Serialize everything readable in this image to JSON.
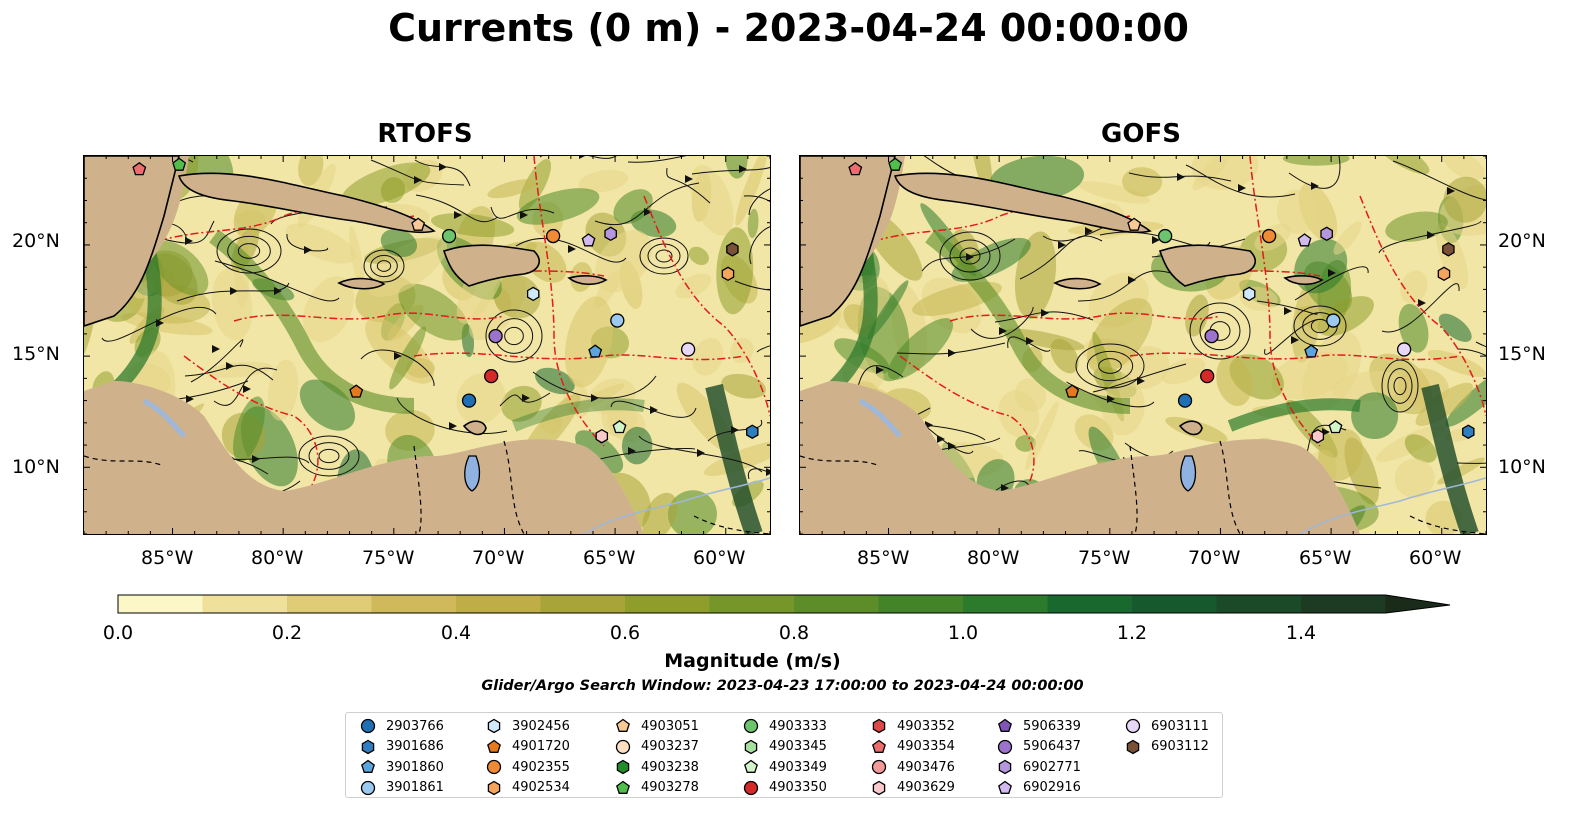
{
  "title": "Currents (0 m) - 2023-04-24 00:00:00",
  "panels": [
    {
      "title": "RTOFS"
    },
    {
      "title": "GOFS"
    }
  ],
  "lon_ticks": [
    "85°W",
    "80°W",
    "75°W",
    "70°W",
    "65°W",
    "60°W"
  ],
  "lat_ticks": [
    "20°N",
    "15°N",
    "10°N"
  ],
  "colorbar": {
    "label": "Magnitude (m/s)",
    "ticks": [
      "0.0",
      "0.2",
      "0.4",
      "0.6",
      "0.8",
      "1.0",
      "1.2",
      "1.4"
    ],
    "range": [
      0,
      1.5
    ],
    "extend": "max",
    "colors": [
      "#fbf7c6",
      "#efe09b",
      "#e0cc76",
      "#d0b95b",
      "#bfae48",
      "#a9a43a",
      "#8f9e2b",
      "#76962a",
      "#5c8d28",
      "#428427",
      "#2c7a2c",
      "#19692f",
      "#16592c",
      "#1b4a28",
      "#1d3a22",
      "#1b2b19"
    ]
  },
  "search_window": "Glider/Argo Search Window: 2023-04-23 17:00:00 to 2023-04-24 00:00:00",
  "legend": [
    {
      "id": "2903766",
      "shape": "circle",
      "color": "#1f6fb4"
    },
    {
      "id": "3901686",
      "shape": "hexagon",
      "color": "#2f7fc0"
    },
    {
      "id": "3901860",
      "shape": "pentagon",
      "color": "#5aa6dc"
    },
    {
      "id": "3901861",
      "shape": "circle",
      "color": "#9cc9ee"
    },
    {
      "id": "3902456",
      "shape": "hexagon",
      "color": "#cfe8fb"
    },
    {
      "id": "4901720",
      "shape": "pentagon",
      "color": "#e7791d"
    },
    {
      "id": "4902355",
      "shape": "circle",
      "color": "#f08a35"
    },
    {
      "id": "4902534",
      "shape": "hexagon",
      "color": "#f5a45c"
    },
    {
      "id": "4903051",
      "shape": "pentagon",
      "color": "#f8c995"
    },
    {
      "id": "4903237",
      "shape": "circle",
      "color": "#fde0c2"
    },
    {
      "id": "4903238",
      "shape": "hexagon",
      "color": "#238b2a"
    },
    {
      "id": "4903278",
      "shape": "pentagon",
      "color": "#4fbf4a"
    },
    {
      "id": "4903333",
      "shape": "circle",
      "color": "#6cc56e"
    },
    {
      "id": "4903345",
      "shape": "hexagon",
      "color": "#a5e09e"
    },
    {
      "id": "4903349",
      "shape": "pentagon",
      "color": "#d3f3c9"
    },
    {
      "id": "4903350",
      "shape": "circle",
      "color": "#d42a2a"
    },
    {
      "id": "4903352",
      "shape": "hexagon",
      "color": "#e04848"
    },
    {
      "id": "4903354",
      "shape": "pentagon",
      "color": "#ec6d6d"
    },
    {
      "id": "4903476",
      "shape": "circle",
      "color": "#f29a9a"
    },
    {
      "id": "4903629",
      "shape": "hexagon",
      "color": "#fbc9c9"
    },
    {
      "id": "5906339",
      "shape": "pentagon",
      "color": "#8055b8"
    },
    {
      "id": "5906437",
      "shape": "circle",
      "color": "#9c73cc"
    },
    {
      "id": "6902771",
      "shape": "hexagon",
      "color": "#b497dc"
    },
    {
      "id": "6902916",
      "shape": "pentagon",
      "color": "#d2b9ee"
    },
    {
      "id": "6903111",
      "shape": "circle",
      "color": "#e8d8f7"
    },
    {
      "id": "6903112",
      "shape": "hexagon",
      "color": "#7a5136"
    }
  ],
  "map_extent": {
    "lon": [
      -89,
      -58
    ],
    "lat": [
      7,
      24
    ]
  },
  "markers": [
    {
      "id": "2903766",
      "lon": -71.6,
      "lat": 13.0
    },
    {
      "id": "3901860",
      "lon": -65.9,
      "lat": 15.2
    },
    {
      "id": "3901861",
      "lon": -64.9,
      "lat": 16.6
    },
    {
      "id": "3902456",
      "lon": -68.7,
      "lat": 17.8
    },
    {
      "id": "4901720",
      "lon": -76.7,
      "lat": 13.4
    },
    {
      "id": "4902355",
      "lon": -67.8,
      "lat": 20.4
    },
    {
      "id": "4902534",
      "lon": -59.9,
      "lat": 18.7
    },
    {
      "id": "4903051",
      "lon": -73.9,
      "lat": 20.9
    },
    {
      "id": "4903278",
      "lon": -84.7,
      "lat": 23.6
    },
    {
      "id": "4903333",
      "lon": -72.5,
      "lat": 20.4
    },
    {
      "id": "4903349",
      "lon": -64.8,
      "lat": 11.8
    },
    {
      "id": "4903350",
      "lon": -70.6,
      "lat": 14.1
    },
    {
      "id": "4903354",
      "lon": -86.5,
      "lat": 23.4
    },
    {
      "id": "4903629",
      "lon": -65.6,
      "lat": 11.4
    },
    {
      "id": "5906437",
      "lon": -70.4,
      "lat": 15.9
    },
    {
      "id": "6902771",
      "lon": -65.2,
      "lat": 20.5
    },
    {
      "id": "6902916",
      "lon": -66.2,
      "lat": 20.2
    },
    {
      "id": "6903111",
      "lon": -61.7,
      "lat": 15.3
    },
    {
      "id": "6903112",
      "lon": -59.7,
      "lat": 19.8
    },
    {
      "id": "3901686",
      "lon": -58.8,
      "lat": 11.6
    }
  ]
}
